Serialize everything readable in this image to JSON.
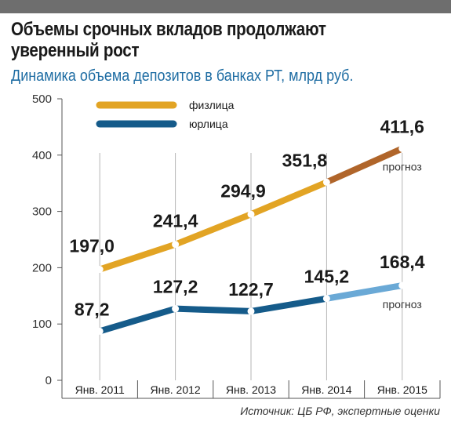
{
  "header": {
    "title_line1": "Объемы срочных вкладов продолжают",
    "title_line2": "уверенный рост",
    "subtitle": "Динамика объема депозитов в банках РТ, млрд руб."
  },
  "source": "Источник: ЦБ РФ, экспертные оценки",
  "forecast_label": "прогноз",
  "colors": {
    "individuals": "#e2a424",
    "individuals_forecast": "#b0652a",
    "legal": "#155b8a",
    "legal_forecast": "#6aa9d6",
    "grid": "#b5b5b5"
  },
  "chart_data": {
    "type": "line",
    "categories": [
      "Янв. 2011",
      "Янв. 2012",
      "Янв. 2013",
      "Янв. 2014",
      "Янв. 2015"
    ],
    "ylim": [
      0,
      500
    ],
    "yticks": [
      "0",
      "100",
      "200",
      "300",
      "400",
      "500"
    ],
    "yticks_values": [
      0,
      100,
      200,
      300,
      400,
      500
    ],
    "legend_position": "top-left",
    "grid": "vertical",
    "series": [
      {
        "name": "физлица",
        "values": [
          197.0,
          241.4,
          294.9,
          351.8,
          411.6
        ],
        "labels": [
          "197,0",
          "241,4",
          "294,9",
          "351,8",
          "411,6"
        ],
        "forecast_from_index": 3
      },
      {
        "name": "юрлица",
        "values": [
          87.2,
          127.2,
          122.7,
          145.2,
          168.4
        ],
        "labels": [
          "87,2",
          "127,2",
          "122,7",
          "145,2",
          "168,4"
        ],
        "forecast_from_index": 3
      }
    ]
  }
}
